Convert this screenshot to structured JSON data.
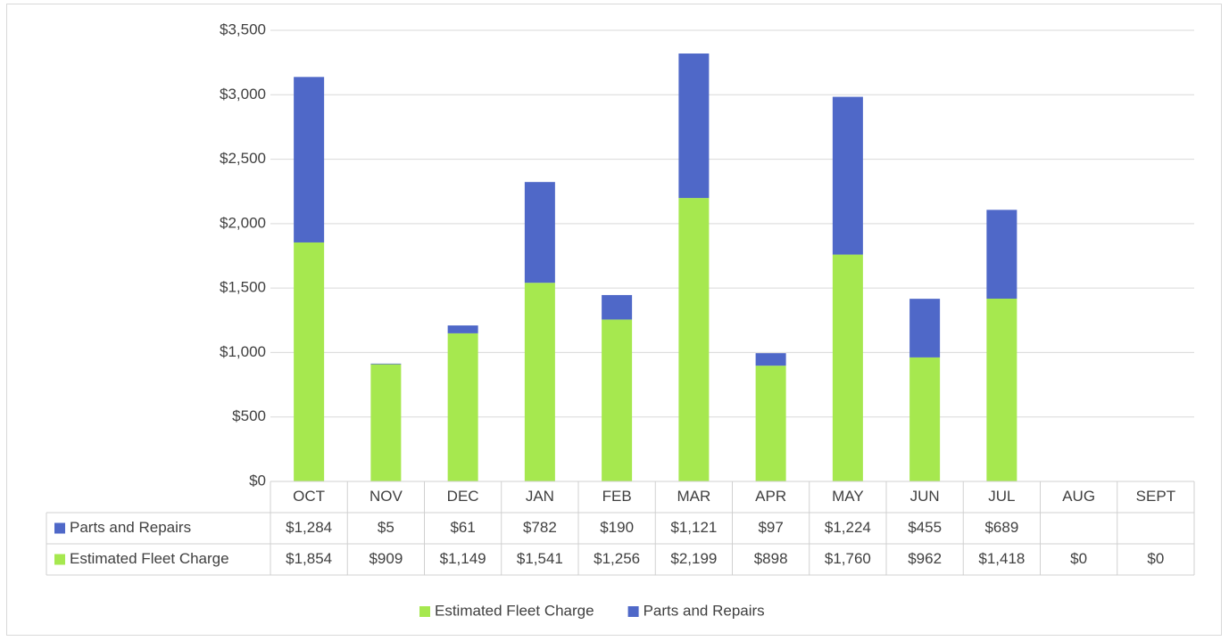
{
  "chart_data": {
    "type": "bar",
    "stacked": true,
    "categories": [
      "OCT",
      "NOV",
      "DEC",
      "JAN",
      "FEB",
      "MAR",
      "APR",
      "MAY",
      "JUN",
      "JUL",
      "AUG",
      "SEPT"
    ],
    "series": [
      {
        "name": "Parts and Repairs",
        "color": "#4f68c8",
        "values": [
          1284,
          5,
          61,
          782,
          190,
          1121,
          97,
          1224,
          455,
          689,
          null,
          null
        ],
        "value_labels": [
          "$1,284",
          "$5",
          "$61",
          "$782",
          "$190",
          "$1,121",
          "$97",
          "$1,224",
          "$455",
          "$689",
          null,
          null
        ]
      },
      {
        "name": "Estimated Fleet Charge",
        "color": "#a6e84f",
        "values": [
          1854,
          909,
          1149,
          1541,
          1256,
          2199,
          898,
          1760,
          962,
          1418,
          0,
          0
        ],
        "value_labels": [
          "$1,854",
          "$909",
          "$1,149",
          "$1,541",
          "$1,256",
          "$2,199",
          "$898",
          "$1,760",
          "$962",
          "$1,418",
          "$0",
          "$0"
        ]
      }
    ],
    "ylim": [
      0,
      3500
    ],
    "yticks": [
      {
        "value": 0,
        "label": "$0"
      },
      {
        "value": 500,
        "label": "$500"
      },
      {
        "value": 1000,
        "label": "$1,000"
      },
      {
        "value": 1500,
        "label": "$1,500"
      },
      {
        "value": 2000,
        "label": "$2,000"
      },
      {
        "value": 2500,
        "label": "$2,500"
      },
      {
        "value": 3000,
        "label": "$3,000"
      },
      {
        "value": 3500,
        "label": "$3,500"
      }
    ],
    "grid": true,
    "legend": "bottom"
  }
}
